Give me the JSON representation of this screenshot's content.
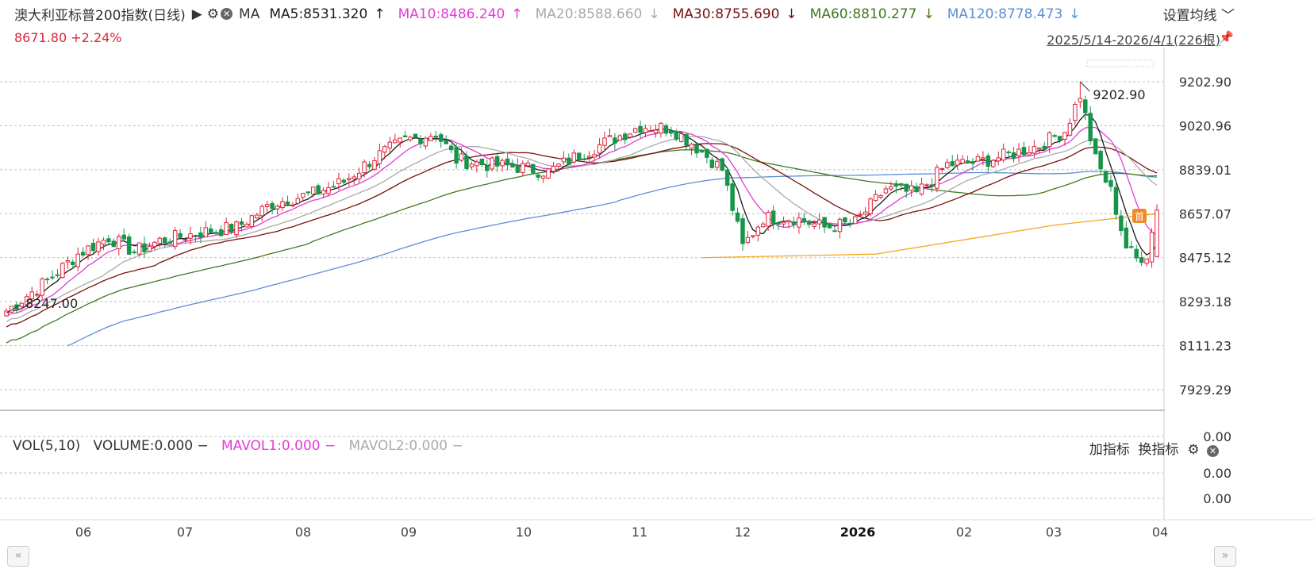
{
  "header": {
    "title": "澳大利亚标普200指数(日线)",
    "ma_label": "MA",
    "ma5": "MA5:8531.320",
    "ma10": "MA10:8486.240",
    "ma20": "MA20:8588.660",
    "ma30": "MA30:8755.690",
    "ma60": "MA60:8810.277",
    "ma120": "MA120:8778.473",
    "ma5_arrow": "↑",
    "ma10_arrow": "↑",
    "ma20_arrow": "↓",
    "ma30_arrow": "↓",
    "ma60_arrow": "↓",
    "ma120_arrow": "↓",
    "settings": "设置均线",
    "price": "8671.80",
    "change": "+2.24%",
    "range": "2025/5/14-2026/4/1(226根)"
  },
  "volume_panel": {
    "label": "VOL(5,10)",
    "volume": "VOLUME:0.000",
    "mavol1": "MAVOL1:0.000",
    "mavol2": "MAVOL2:0.000",
    "add_indicator": "加指标",
    "switch_indicator": "换指标",
    "y_ticks": [
      "0.00",
      "0.00",
      "0.00"
    ]
  },
  "colors": {
    "up": "#e0223a",
    "down": "#17954a",
    "ma5": "#1b1b1b",
    "ma10": "#e23bd6",
    "ma20": "#a9a9a9",
    "ma30": "#7a1010",
    "ma60": "#3f7a1d",
    "ma120": "#5b8fd6",
    "cost": "#f5a623"
  },
  "chart_data": {
    "type": "candlestick",
    "y_ticks": [
      "9202.90",
      "9020.96",
      "8839.01",
      "8657.07",
      "8475.12",
      "8293.18",
      "8111.23",
      "7929.29"
    ],
    "ylim": [
      7929.29,
      9202.9
    ],
    "x_ticks": [
      "06",
      "07",
      "08",
      "09",
      "10",
      "11",
      "12",
      "2026",
      "02",
      "03",
      "04"
    ],
    "annotations": {
      "high": "9202.90",
      "low": "8247.00",
      "marker": "首"
    },
    "close_anchors": [
      [
        0,
        8255
      ],
      [
        8,
        8380
      ],
      [
        14,
        8490
      ],
      [
        20,
        8560
      ],
      [
        25,
        8500
      ],
      [
        30,
        8545
      ],
      [
        38,
        8580
      ],
      [
        45,
        8600
      ],
      [
        52,
        8700
      ],
      [
        60,
        8740
      ],
      [
        66,
        8790
      ],
      [
        72,
        8890
      ],
      [
        78,
        8960
      ],
      [
        84,
        8990
      ],
      [
        88,
        8880
      ],
      [
        94,
        8860
      ],
      [
        100,
        8850
      ],
      [
        106,
        8830
      ],
      [
        112,
        8900
      ],
      [
        118,
        8960
      ],
      [
        124,
        9020
      ],
      [
        130,
        9010
      ],
      [
        134,
        8950
      ],
      [
        140,
        8840
      ],
      [
        144,
        8520
      ],
      [
        148,
        8640
      ],
      [
        154,
        8640
      ],
      [
        160,
        8600
      ],
      [
        166,
        8620
      ],
      [
        172,
        8760
      ],
      [
        178,
        8740
      ],
      [
        184,
        8860
      ],
      [
        190,
        8870
      ],
      [
        196,
        8900
      ],
      [
        202,
        8940
      ],
      [
        207,
        9000
      ],
      [
        210,
        9150
      ],
      [
        213,
        8880
      ],
      [
        216,
        8750
      ],
      [
        219,
        8520
      ],
      [
        221,
        8470
      ],
      [
        223,
        8490
      ],
      [
        225,
        8671.8
      ]
    ]
  }
}
